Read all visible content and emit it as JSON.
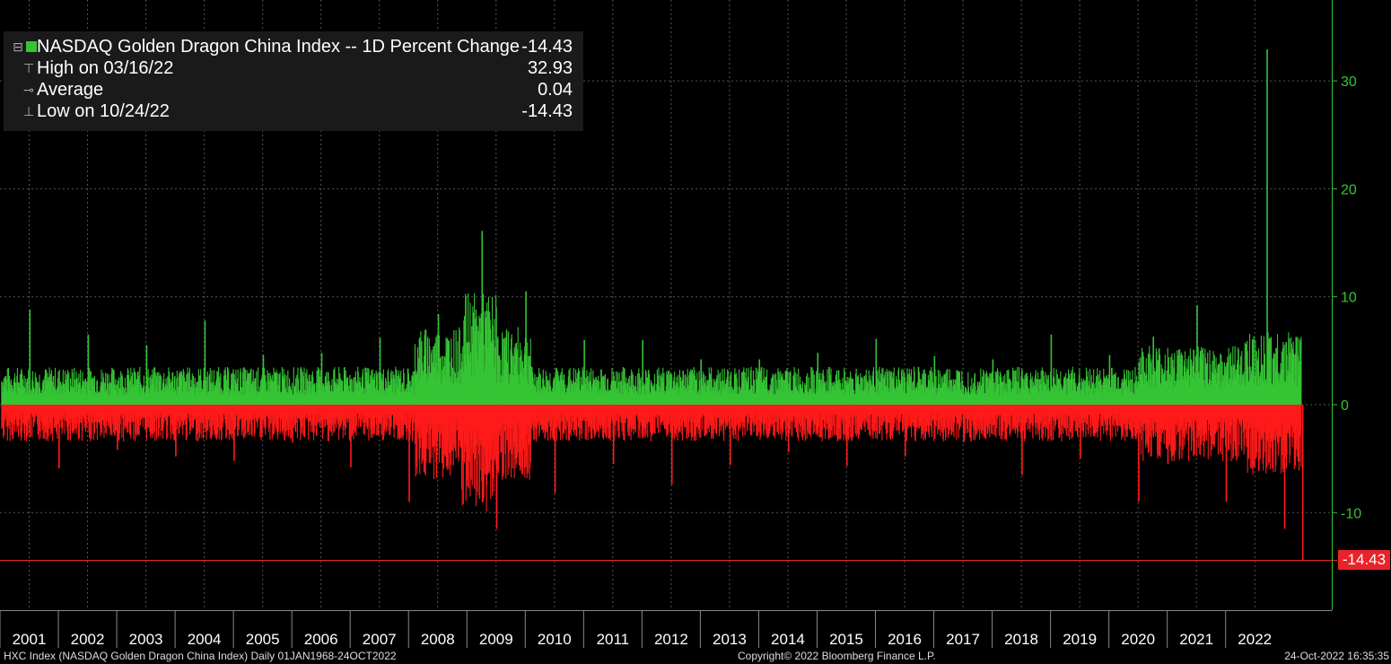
{
  "legend": {
    "title": "NASDAQ Golden Dragon China Index -- 1D Percent Change",
    "current_value": "-14.43",
    "high_label": "High on 03/16/22",
    "high_value": "32.93",
    "average_label": "Average",
    "average_value": "0.04",
    "low_label": "Low on 10/24/22",
    "low_value": "-14.43"
  },
  "last_price_tag": "-14.43",
  "footer": {
    "left": "HXC Index (NASDAQ Golden Dragon China Index)  Daily 01JAN1968-24OCT2022",
    "center": "Copyright© 2022 Bloomberg Finance L.P.",
    "right": "24-Oct-2022 16:35:35"
  },
  "colors": {
    "positive": "#35c435",
    "negative": "#ff1a1a",
    "axis": "#35c435",
    "background": "#000000"
  },
  "chart_data": {
    "type": "bar",
    "title": "NASDAQ Golden Dragon China Index -- 1D Percent Change",
    "xlabel": "",
    "ylabel": "",
    "ylim": [
      -19,
      37.5
    ],
    "y_ticks": [
      30,
      20,
      10,
      0,
      -10
    ],
    "x_ticks": [
      "2001",
      "2002",
      "2003",
      "2004",
      "2005",
      "2006",
      "2007",
      "2008",
      "2009",
      "2010",
      "2011",
      "2012",
      "2013",
      "2014",
      "2015",
      "2016",
      "2017",
      "2018",
      "2019",
      "2020",
      "2021",
      "2022"
    ],
    "grid": true,
    "legend_position": "top-left",
    "current_value": -14.43,
    "high": {
      "date": "03/16/22",
      "value": 32.93
    },
    "low": {
      "date": "10/24/22",
      "value": -14.43
    },
    "average": 0.04,
    "series": [
      {
        "name": "NASDAQ Golden Dragon China Index -- 1D Percent Change",
        "x": [
          "2001",
          "2001.5",
          "2002",
          "2002.5",
          "2003",
          "2003.5",
          "2004",
          "2004.5",
          "2005",
          "2005.5",
          "2006",
          "2006.5",
          "2007",
          "2007.5",
          "2008",
          "2008.5",
          "2008.75",
          "2009",
          "2009.5",
          "2010",
          "2010.5",
          "2011",
          "2011.5",
          "2012",
          "2012.5",
          "2013",
          "2013.5",
          "2014",
          "2014.5",
          "2015",
          "2015.5",
          "2016",
          "2016.5",
          "2017",
          "2017.5",
          "2018",
          "2018.5",
          "2019",
          "2019.5",
          "2020",
          "2020.25",
          "2020.5",
          "2021",
          "2021.5",
          "2022.2",
          "2022.5",
          "2022.81"
        ],
        "values": [
          8.8,
          -5.9,
          6.5,
          -4.2,
          5.5,
          -4.8,
          7.8,
          -5.2,
          4.6,
          -3.5,
          4.8,
          -5.8,
          6.2,
          -9.0,
          8.4,
          -7.6,
          16.1,
          -11.5,
          10.5,
          -8.2,
          6.0,
          -5.5,
          6.0,
          -7.4,
          4.2,
          -5.6,
          4.2,
          -4.4,
          4.8,
          -5.7,
          6.1,
          -4.8,
          4.5,
          -3.5,
          4.2,
          -6.5,
          6.5,
          -5.0,
          4.6,
          -9.0,
          6.3,
          -5.5,
          9.2,
          -9.0,
          32.93,
          -11.5,
          -14.43
        ]
      }
    ]
  }
}
